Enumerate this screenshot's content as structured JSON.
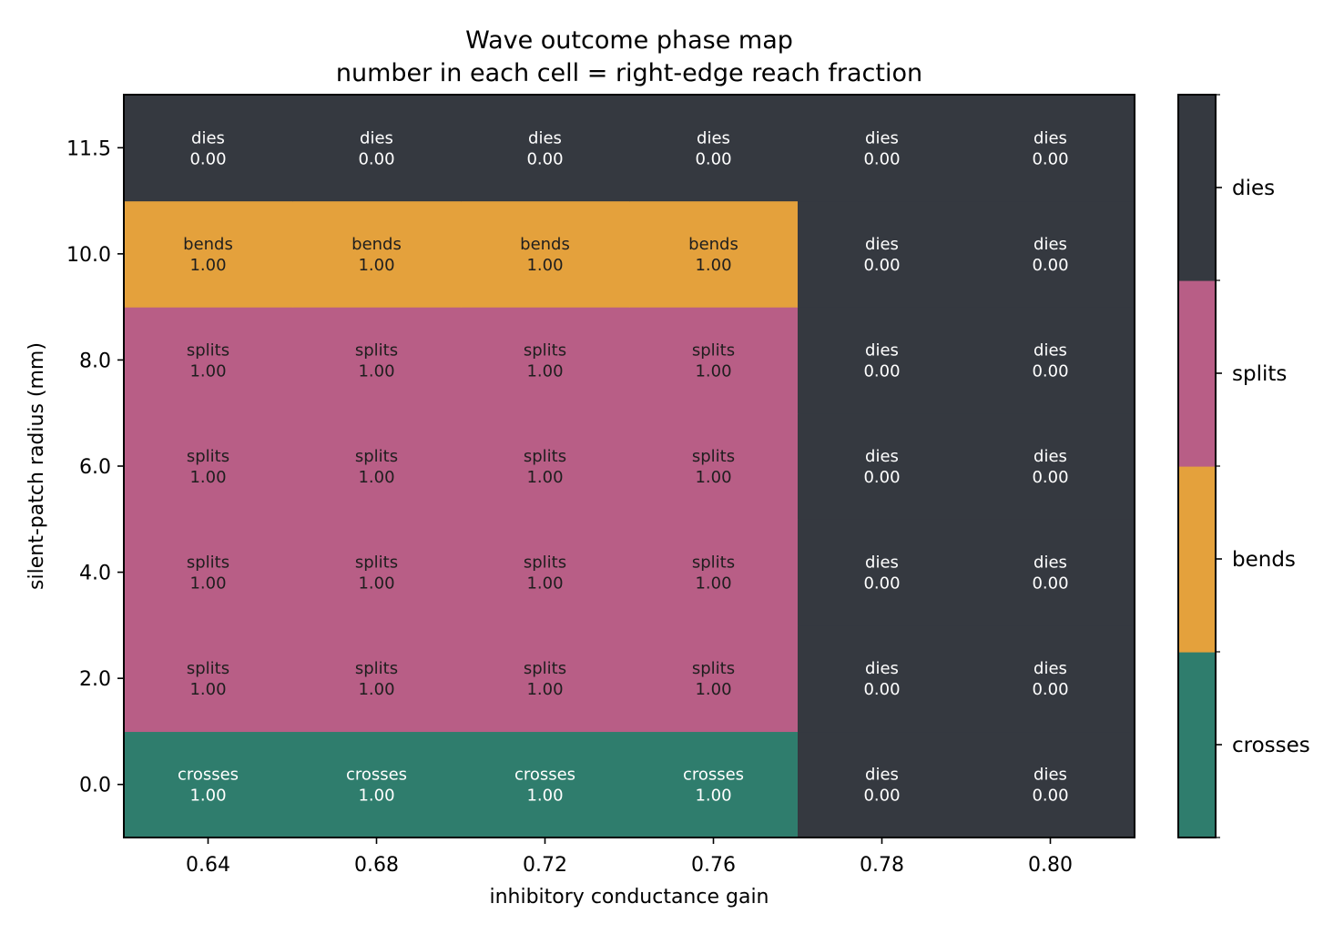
{
  "chart_data": {
    "type": "heatmap",
    "title": "Wave outcome phase map",
    "subtitle": "number in each cell = right-edge reach fraction",
    "xlabel": "inhibitory conductance gain",
    "ylabel": "silent-patch radius (mm)",
    "x_categories": [
      "0.64",
      "0.68",
      "0.72",
      "0.76",
      "0.78",
      "0.80"
    ],
    "y_categories": [
      "0.0",
      "2.0",
      "4.0",
      "6.0",
      "8.0",
      "10.0",
      "11.5"
    ],
    "classes": [
      "crosses",
      "bends",
      "splits",
      "dies"
    ],
    "colors": {
      "crosses": "#2f7d6d",
      "bends": "#e4a13c",
      "splits": "#b85e86",
      "dies": "#353940"
    },
    "text_colors": {
      "crosses": "#ffffff",
      "bends": "#1e1e1e",
      "splits": "#1e1e1e",
      "dies": "#ffffff"
    },
    "cells": [
      [
        {
          "outcome": "crosses",
          "fraction": "1.00"
        },
        {
          "outcome": "crosses",
          "fraction": "1.00"
        },
        {
          "outcome": "crosses",
          "fraction": "1.00"
        },
        {
          "outcome": "crosses",
          "fraction": "1.00"
        },
        {
          "outcome": "dies",
          "fraction": "0.00"
        },
        {
          "outcome": "dies",
          "fraction": "0.00"
        }
      ],
      [
        {
          "outcome": "splits",
          "fraction": "1.00"
        },
        {
          "outcome": "splits",
          "fraction": "1.00"
        },
        {
          "outcome": "splits",
          "fraction": "1.00"
        },
        {
          "outcome": "splits",
          "fraction": "1.00"
        },
        {
          "outcome": "dies",
          "fraction": "0.00"
        },
        {
          "outcome": "dies",
          "fraction": "0.00"
        }
      ],
      [
        {
          "outcome": "splits",
          "fraction": "1.00"
        },
        {
          "outcome": "splits",
          "fraction": "1.00"
        },
        {
          "outcome": "splits",
          "fraction": "1.00"
        },
        {
          "outcome": "splits",
          "fraction": "1.00"
        },
        {
          "outcome": "dies",
          "fraction": "0.00"
        },
        {
          "outcome": "dies",
          "fraction": "0.00"
        }
      ],
      [
        {
          "outcome": "splits",
          "fraction": "1.00"
        },
        {
          "outcome": "splits",
          "fraction": "1.00"
        },
        {
          "outcome": "splits",
          "fraction": "1.00"
        },
        {
          "outcome": "splits",
          "fraction": "1.00"
        },
        {
          "outcome": "dies",
          "fraction": "0.00"
        },
        {
          "outcome": "dies",
          "fraction": "0.00"
        }
      ],
      [
        {
          "outcome": "splits",
          "fraction": "1.00"
        },
        {
          "outcome": "splits",
          "fraction": "1.00"
        },
        {
          "outcome": "splits",
          "fraction": "1.00"
        },
        {
          "outcome": "splits",
          "fraction": "1.00"
        },
        {
          "outcome": "dies",
          "fraction": "0.00"
        },
        {
          "outcome": "dies",
          "fraction": "0.00"
        }
      ],
      [
        {
          "outcome": "bends",
          "fraction": "1.00"
        },
        {
          "outcome": "bends",
          "fraction": "1.00"
        },
        {
          "outcome": "bends",
          "fraction": "1.00"
        },
        {
          "outcome": "bends",
          "fraction": "1.00"
        },
        {
          "outcome": "dies",
          "fraction": "0.00"
        },
        {
          "outcome": "dies",
          "fraction": "0.00"
        }
      ],
      [
        {
          "outcome": "dies",
          "fraction": "0.00"
        },
        {
          "outcome": "dies",
          "fraction": "0.00"
        },
        {
          "outcome": "dies",
          "fraction": "0.00"
        },
        {
          "outcome": "dies",
          "fraction": "0.00"
        },
        {
          "outcome": "dies",
          "fraction": "0.00"
        },
        {
          "outcome": "dies",
          "fraction": "0.00"
        }
      ]
    ],
    "legend": "colorbar-right",
    "grid": false
  }
}
